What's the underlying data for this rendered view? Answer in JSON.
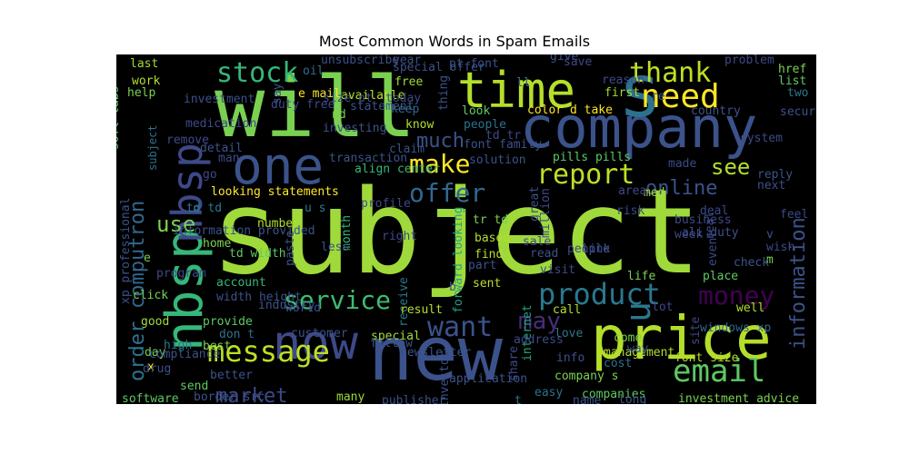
{
  "chart_data": {
    "type": "wordcloud",
    "title": "Most Common Words in Spam Emails",
    "background": "#000000",
    "colormap": "viridis",
    "words": [
      {
        "text": "subject",
        "color": "#9fda3a"
      },
      {
        "text": "will",
        "color": "#7ad151"
      },
      {
        "text": "company",
        "color": "#3b528b"
      },
      {
        "text": "new",
        "color": "#3b528b"
      },
      {
        "text": "s",
        "color": "#2c728e"
      },
      {
        "text": "time",
        "color": "#b5de2b"
      },
      {
        "text": "nbsp",
        "color": "#35b779"
      },
      {
        "text": "nbsp",
        "color": "#3e4989"
      },
      {
        "text": "price",
        "color": "#b5de2b"
      },
      {
        "text": "now",
        "color": "#3e4989"
      },
      {
        "text": "one",
        "color": "#3b528b"
      },
      {
        "text": "need",
        "color": "#fde725"
      },
      {
        "text": "thank",
        "color": "#bddf26"
      },
      {
        "text": "stock",
        "color": "#35b779"
      },
      {
        "text": "message",
        "color": "#bddf26"
      },
      {
        "text": "email",
        "color": "#5ec962"
      },
      {
        "text": "product",
        "color": "#2a788e"
      },
      {
        "text": "service",
        "color": "#3dbc74"
      },
      {
        "text": "report",
        "color": "#bddf26"
      },
      {
        "text": "offer",
        "color": "#31688e"
      },
      {
        "text": "make",
        "color": "#fde725"
      },
      {
        "text": "money",
        "color": "#440154"
      },
      {
        "text": "want",
        "color": "#3b528b"
      },
      {
        "text": "may",
        "color": "#472d7b"
      },
      {
        "text": "see",
        "color": "#b5de2b"
      },
      {
        "text": "online",
        "color": "#3b528b"
      },
      {
        "text": "information",
        "color": "#3b528b"
      },
      {
        "text": "computron",
        "color": "#31688e"
      },
      {
        "text": "order",
        "color": "#2c728e"
      },
      {
        "text": "use",
        "color": "#7ad151"
      },
      {
        "text": "market",
        "color": "#3e4989"
      },
      {
        "text": "u",
        "color": "#2a788e"
      },
      {
        "text": "font size",
        "color": "#b5de2b"
      },
      {
        "text": "investment advice",
        "color": "#7ad151"
      },
      {
        "text": "looking statements",
        "color": "#fde725"
      },
      {
        "text": "forward looking",
        "color": "#1fa187"
      },
      {
        "text": "internet",
        "color": "#22a884"
      },
      {
        "text": "companies",
        "color": "#5ec962"
      },
      {
        "text": "company s",
        "color": "#7ad151"
      },
      {
        "text": "receive",
        "color": "#2a788e"
      },
      {
        "text": "newsletter",
        "color": "#3b528b"
      },
      {
        "text": "special",
        "color": "#a2da37"
      },
      {
        "text": "result",
        "color": "#b5de2b"
      },
      {
        "text": "account",
        "color": "#35b779"
      },
      {
        "text": "width height",
        "color": "#3b528b"
      },
      {
        "text": "click",
        "color": "#7ad151"
      },
      {
        "text": "provide",
        "color": "#5ec962"
      },
      {
        "text": "don t",
        "color": "#2c728e"
      },
      {
        "text": "best",
        "color": "#7ad151"
      },
      {
        "text": "good",
        "color": "#9fda3a"
      },
      {
        "text": "day",
        "color": "#7ad151"
      },
      {
        "text": "software",
        "color": "#5ec962"
      },
      {
        "text": "send",
        "color": "#5ec962"
      },
      {
        "text": "many",
        "color": "#9fda3a"
      },
      {
        "text": "home",
        "color": "#7ad151"
      },
      {
        "text": "number",
        "color": "#b5de2b"
      },
      {
        "text": "find",
        "color": "#b5de2b"
      },
      {
        "text": "part",
        "color": "#3b528b"
      },
      {
        "text": "sent",
        "color": "#bddf26"
      },
      {
        "text": "call",
        "color": "#b5de2b"
      },
      {
        "text": "come",
        "color": "#7ad151"
      },
      {
        "text": "info",
        "color": "#3b528b"
      },
      {
        "text": "link",
        "color": "#3b528b"
      },
      {
        "text": "life",
        "color": "#7ad151"
      },
      {
        "text": "business",
        "color": "#3e4989"
      },
      {
        "text": "week",
        "color": "#3e4989"
      },
      {
        "text": "based",
        "color": "#b5de2b"
      },
      {
        "text": "pills pills",
        "color": "#5ec962"
      },
      {
        "text": "available",
        "color": "#bddf26"
      },
      {
        "text": "e mail",
        "color": "#fde725"
      },
      {
        "text": "free",
        "color": "#a2da37"
      },
      {
        "text": "year",
        "color": "#3b528b"
      },
      {
        "text": "today",
        "color": "#3e4989"
      },
      {
        "text": "know",
        "color": "#b5de2b"
      },
      {
        "text": "people",
        "color": "#2c728e"
      },
      {
        "text": "look",
        "color": "#5ec962"
      },
      {
        "text": "color d take",
        "color": "#fde725"
      },
      {
        "text": "td tr",
        "color": "#3e4989"
      },
      {
        "text": "save",
        "color": "#3e4989"
      },
      {
        "text": "first",
        "color": "#a2da37"
      },
      {
        "text": "href",
        "color": "#7ad151"
      },
      {
        "text": "list",
        "color": "#5ec962"
      },
      {
        "text": "two",
        "color": "#2a788e"
      },
      {
        "text": "work",
        "color": "#b5de2b"
      },
      {
        "text": "help",
        "color": "#7ad151"
      },
      {
        "text": "last",
        "color": "#a2da37"
      },
      {
        "text": "oil",
        "color": "#2c728e"
      },
      {
        "text": "nd",
        "color": "#7ad151"
      },
      {
        "text": "well",
        "color": "#b5de2b"
      },
      {
        "text": "made",
        "color": "#3e4989"
      },
      {
        "text": "med",
        "color": "#a2da37"
      },
      {
        "text": "go",
        "color": "#3e4989"
      },
      {
        "text": "td td",
        "color": "#2a788e"
      },
      {
        "text": "tr td",
        "color": "#7ad151"
      },
      {
        "text": "subject",
        "color": "#2c728e"
      },
      {
        "text": "million",
        "color": "#3e4989"
      },
      {
        "text": "great",
        "color": "#3b528b"
      },
      {
        "text": "month",
        "color": "#35b779"
      },
      {
        "text": "u s",
        "color": "#2a788e"
      },
      {
        "text": "e",
        "color": "#7ad151"
      },
      {
        "text": "re",
        "color": "#3b528b"
      },
      {
        "text": "ll",
        "color": "#31688e"
      },
      {
        "text": "v",
        "color": "#3b528b"
      },
      {
        "text": "n",
        "color": "#31688e"
      },
      {
        "text": "b",
        "color": "#3b528b"
      },
      {
        "text": "t",
        "color": "#2c728e"
      },
      {
        "text": "x",
        "color": "#fde725"
      },
      {
        "text": "m",
        "color": "#7ad151"
      },
      {
        "text": "wish",
        "color": "#3e4989"
      },
      {
        "text": "place",
        "color": "#5ec962"
      },
      {
        "text": "check",
        "color": "#3b528b"
      },
      {
        "text": "deal",
        "color": "#3e4989"
      },
      {
        "text": "risk",
        "color": "#3e4989"
      },
      {
        "text": "area",
        "color": "#3e4989"
      },
      {
        "text": "next",
        "color": "#3b528b"
      },
      {
        "text": "feel",
        "color": "#3e4989"
      },
      {
        "text": "management",
        "color": "#b5de2b"
      },
      {
        "text": "cost",
        "color": "#2c728e"
      },
      {
        "text": "easy",
        "color": "#2c728e"
      },
      {
        "text": "long",
        "color": "#3b528b"
      },
      {
        "text": "address",
        "color": "#3e4989"
      },
      {
        "text": "love",
        "color": "#2a788e"
      },
      {
        "text": "windows xp",
        "color": "#31688e"
      },
      {
        "text": "ali duty",
        "color": "#3b528b"
      },
      {
        "text": "problem",
        "color": "#3e4989"
      },
      {
        "text": "security",
        "color": "#3b528b"
      },
      {
        "text": "country",
        "color": "#3b528b"
      },
      {
        "text": "reason",
        "color": "#3e4989"
      },
      {
        "text": "claim",
        "color": "#3b528b"
      },
      {
        "text": "transaction",
        "color": "#3b528b"
      },
      {
        "text": "align center",
        "color": "#35b779"
      },
      {
        "text": "solution",
        "color": "#3b528b"
      },
      {
        "text": "font family",
        "color": "#3b528b"
      },
      {
        "text": "investing",
        "color": "#3b528b"
      },
      {
        "text": "statement",
        "color": "#3b528b"
      },
      {
        "text": "keep",
        "color": "#31688e"
      },
      {
        "text": "size pt",
        "color": "#3b528b"
      },
      {
        "text": "duty free",
        "color": "#3e4989"
      },
      {
        "text": "unsubscribe",
        "color": "#3b528b"
      },
      {
        "text": "investment",
        "color": "#3b528b"
      },
      {
        "text": "medication",
        "color": "#3e4989"
      },
      {
        "text": "detail",
        "color": "#3b528b"
      },
      {
        "text": "remove",
        "color": "#3e4989"
      },
      {
        "text": "soft tabs",
        "color": "#5ec962"
      },
      {
        "text": "xp professional",
        "color": "#3b528b"
      },
      {
        "text": "information provided",
        "color": "#3b528b"
      },
      {
        "text": "program",
        "color": "#3e4989"
      },
      {
        "text": "td width",
        "color": "#5ec962"
      },
      {
        "text": "customer",
        "color": "#3b528b"
      },
      {
        "text": "compliance",
        "color": "#3b528b"
      },
      {
        "text": "industry",
        "color": "#3b528b"
      },
      {
        "text": "world",
        "color": "#3b528b"
      },
      {
        "text": "better",
        "color": "#3b528b"
      },
      {
        "text": "border src",
        "color": "#3b528b"
      },
      {
        "text": "drug",
        "color": "#3b528b"
      },
      {
        "text": "high",
        "color": "#2a788e"
      },
      {
        "text": "follow",
        "color": "#3b528b"
      },
      {
        "text": "publisher",
        "color": "#3b528b"
      },
      {
        "text": "investor",
        "color": "#3b528b"
      },
      {
        "text": "application",
        "color": "#3b528b"
      },
      {
        "text": "share",
        "color": "#3e4989"
      },
      {
        "text": "name",
        "color": "#3b528b"
      },
      {
        "text": "read",
        "color": "#3b528b"
      },
      {
        "text": "visit",
        "color": "#3e4989"
      },
      {
        "text": "people",
        "color": "#3e4989"
      },
      {
        "text": "sale",
        "color": "#3e4989"
      },
      {
        "text": "right",
        "color": "#3e4989"
      },
      {
        "text": "less",
        "color": "#3b528b"
      },
      {
        "text": "paste",
        "color": "#3b528b"
      },
      {
        "text": "give",
        "color": "#3b528b"
      },
      {
        "text": "thing",
        "color": "#3b528b"
      },
      {
        "text": "pt font",
        "color": "#3b528b"
      },
      {
        "text": "special offer",
        "color": "#3b528b"
      },
      {
        "text": "say",
        "color": "#3b528b"
      },
      {
        "text": "man",
        "color": "#3e4989"
      },
      {
        "text": "profile",
        "color": "#3e4989"
      },
      {
        "text": "way",
        "color": "#3b528b"
      },
      {
        "text": "lot",
        "color": "#3e4989"
      },
      {
        "text": "site",
        "color": "#3e4989"
      },
      {
        "text": "event",
        "color": "#3e4989"
      },
      {
        "text": "real",
        "color": "#3e4989"
      },
      {
        "text": "reply",
        "color": "#3b528b"
      },
      {
        "text": "system",
        "color": "#3e4989"
      },
      {
        "text": "much",
        "color": "#3b528b"
      },
      {
        "text": "even",
        "color": "#3e4989"
      },
      {
        "text": "oo",
        "color": "#3b528b"
      },
      {
        "text": "o",
        "color": "#35b779"
      }
    ]
  }
}
